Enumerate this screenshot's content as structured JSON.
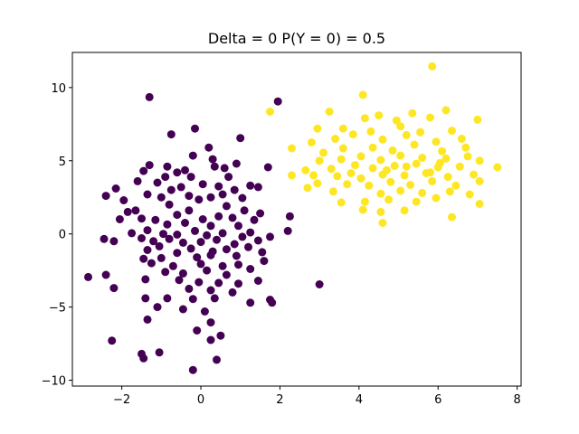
{
  "chart_data": {
    "type": "scatter",
    "title": "Delta = 0 P(Y = 0) = 0.5",
    "xlabel": "",
    "ylabel": "",
    "xlim": [
      -3.25,
      8.1
    ],
    "ylim": [
      -10.4,
      12.4
    ],
    "xticks": [
      -2,
      0,
      2,
      4,
      6,
      8
    ],
    "yticks": [
      -10,
      -5,
      0,
      5,
      10
    ],
    "tick_labels_x": [
      "−2",
      "0",
      "2",
      "4",
      "6",
      "8"
    ],
    "tick_labels_y": [
      "−10",
      "−5",
      "0",
      "5",
      "10"
    ],
    "grid": false,
    "series": [
      {
        "class": 0,
        "color": "#440154",
        "points": [
          [
            -1.3,
            9.35
          ],
          [
            1.95,
            9.05
          ],
          [
            -0.15,
            7.2
          ],
          [
            -0.75,
            6.8
          ],
          [
            1.0,
            6.55
          ],
          [
            0.2,
            5.9
          ],
          [
            -0.2,
            5.35
          ],
          [
            0.3,
            5.1
          ],
          [
            -1.3,
            4.7
          ],
          [
            -0.85,
            4.6
          ],
          [
            -0.6,
            4.2
          ],
          [
            -0.4,
            4.35
          ],
          [
            0.6,
            4.5
          ],
          [
            0.9,
            4.8
          ],
          [
            1.7,
            4.55
          ],
          [
            0.35,
            4.6
          ],
          [
            -1.45,
            4.3
          ],
          [
            -1.6,
            3.6
          ],
          [
            -0.25,
            3.9
          ],
          [
            -0.9,
            3.9
          ],
          [
            0.7,
            3.9
          ],
          [
            -1.1,
            3.5
          ],
          [
            -0.5,
            3.2
          ],
          [
            -2.15,
            3.1
          ],
          [
            1.25,
            3.3
          ],
          [
            1.45,
            3.2
          ],
          [
            0.05,
            3.4
          ],
          [
            0.45,
            3.25
          ],
          [
            -0.75,
            3.0
          ],
          [
            0.85,
            3.0
          ],
          [
            -1.95,
            2.3
          ],
          [
            -2.4,
            2.6
          ],
          [
            -1.35,
            2.7
          ],
          [
            -0.3,
            2.6
          ],
          [
            -0.05,
            2.35
          ],
          [
            0.25,
            2.5
          ],
          [
            0.55,
            2.7
          ],
          [
            1.05,
            2.45
          ],
          [
            -0.8,
            2.0
          ],
          [
            -1.0,
            2.5
          ],
          [
            0.65,
            1.9
          ],
          [
            1.1,
            1.6
          ],
          [
            1.5,
            1.4
          ],
          [
            -1.65,
            1.6
          ],
          [
            -1.85,
            1.5
          ],
          [
            -1.5,
            1.05
          ],
          [
            -0.6,
            1.3
          ],
          [
            -0.3,
            1.6
          ],
          [
            0.05,
            1.0
          ],
          [
            0.45,
            1.2
          ],
          [
            0.8,
            1.1
          ],
          [
            1.35,
            0.95
          ],
          [
            2.25,
            1.2
          ],
          [
            -2.05,
            1.0
          ],
          [
            -1.15,
            0.95
          ],
          [
            -0.85,
            0.65
          ],
          [
            -0.4,
            0.75
          ],
          [
            0.25,
            0.55
          ],
          [
            0.95,
            0.55
          ],
          [
            1.25,
            0.1
          ],
          [
            -1.75,
            0.05
          ],
          [
            -1.35,
            0.25
          ],
          [
            -0.95,
            0.0
          ],
          [
            -0.6,
            -0.05
          ],
          [
            -0.15,
            0.2
          ],
          [
            0.15,
            -0.1
          ],
          [
            0.55,
            0.05
          ],
          [
            1.05,
            -0.2
          ],
          [
            1.45,
            -0.45
          ],
          [
            1.75,
            -0.2
          ],
          [
            2.2,
            0.2
          ],
          [
            -2.45,
            -0.35
          ],
          [
            -2.2,
            -0.5
          ],
          [
            -1.5,
            -0.3
          ],
          [
            -1.2,
            -0.5
          ],
          [
            -0.8,
            -0.35
          ],
          [
            -0.45,
            -0.6
          ],
          [
            0.0,
            -0.55
          ],
          [
            0.4,
            -0.4
          ],
          [
            0.85,
            -0.7
          ],
          [
            1.2,
            -0.9
          ],
          [
            -1.35,
            -1.1
          ],
          [
            -1.05,
            -0.85
          ],
          [
            -0.25,
            -1.0
          ],
          [
            0.3,
            -1.2
          ],
          [
            0.65,
            -1.05
          ],
          [
            1.55,
            -1.25
          ],
          [
            -1.45,
            -1.7
          ],
          [
            -1.0,
            -1.65
          ],
          [
            -0.6,
            -1.3
          ],
          [
            -0.1,
            -1.6
          ],
          [
            0.25,
            -1.45
          ],
          [
            0.9,
            -1.5
          ],
          [
            1.6,
            -1.85
          ],
          [
            -1.25,
            -2.0
          ],
          [
            -0.7,
            -2.2
          ],
          [
            0.0,
            -2.05
          ],
          [
            0.55,
            -2.2
          ],
          [
            0.95,
            -2.1
          ],
          [
            1.25,
            -2.4
          ],
          [
            -2.4,
            -2.8
          ],
          [
            -0.9,
            -2.6
          ],
          [
            -0.45,
            -2.7
          ],
          [
            0.15,
            -2.5
          ],
          [
            0.65,
            -2.8
          ],
          [
            -1.4,
            -3.1
          ],
          [
            -0.55,
            -3.15
          ],
          [
            -0.05,
            -3.3
          ],
          [
            0.45,
            -3.35
          ],
          [
            0.95,
            -3.4
          ],
          [
            1.45,
            -3.2
          ],
          [
            -2.85,
            -2.95
          ],
          [
            3.0,
            -3.45
          ],
          [
            -2.2,
            -3.7
          ],
          [
            -0.3,
            -3.75
          ],
          [
            0.25,
            -3.85
          ],
          [
            0.8,
            -4.0
          ],
          [
            -1.4,
            -4.4
          ],
          [
            -0.85,
            -4.4
          ],
          [
            -0.2,
            -4.45
          ],
          [
            0.35,
            -4.4
          ],
          [
            1.75,
            -4.5
          ],
          [
            1.8,
            -4.7
          ],
          [
            1.25,
            -4.7
          ],
          [
            -1.1,
            -5.0
          ],
          [
            -0.45,
            -5.15
          ],
          [
            0.1,
            -5.3
          ],
          [
            -1.35,
            -5.85
          ],
          [
            -0.1,
            -6.6
          ],
          [
            0.25,
            -6.05
          ],
          [
            0.5,
            -6.95
          ],
          [
            0.25,
            -7.25
          ],
          [
            -2.25,
            -7.3
          ],
          [
            -1.5,
            -8.2
          ],
          [
            -1.45,
            -8.5
          ],
          [
            -1.05,
            -8.1
          ],
          [
            0.4,
            -8.6
          ],
          [
            -0.2,
            -9.3
          ]
        ]
      },
      {
        "class": 1,
        "color": "#fde725",
        "points": [
          [
            5.85,
            11.45
          ],
          [
            4.1,
            9.5
          ],
          [
            1.75,
            8.35
          ],
          [
            4.5,
            8.1
          ],
          [
            5.35,
            8.25
          ],
          [
            6.2,
            8.45
          ],
          [
            7.0,
            7.8
          ],
          [
            3.25,
            8.35
          ],
          [
            4.15,
            7.9
          ],
          [
            4.95,
            7.75
          ],
          [
            5.8,
            7.95
          ],
          [
            2.95,
            7.2
          ],
          [
            3.6,
            7.2
          ],
          [
            4.3,
            7.0
          ],
          [
            5.05,
            7.35
          ],
          [
            5.55,
            6.95
          ],
          [
            6.35,
            7.05
          ],
          [
            2.8,
            6.25
          ],
          [
            3.4,
            6.5
          ],
          [
            3.85,
            6.8
          ],
          [
            4.6,
            6.45
          ],
          [
            5.2,
            6.75
          ],
          [
            5.95,
            6.3
          ],
          [
            6.6,
            6.5
          ],
          [
            2.3,
            5.85
          ],
          [
            3.1,
            5.55
          ],
          [
            3.6,
            5.85
          ],
          [
            4.35,
            5.9
          ],
          [
            4.85,
            5.7
          ],
          [
            5.4,
            6.1
          ],
          [
            6.1,
            5.65
          ],
          [
            6.7,
            5.9
          ],
          [
            3.0,
            5.0
          ],
          [
            3.55,
            5.1
          ],
          [
            4.05,
            5.3
          ],
          [
            4.55,
            5.05
          ],
          [
            5.05,
            5.35
          ],
          [
            5.6,
            5.2
          ],
          [
            6.2,
            5.15
          ],
          [
            6.75,
            5.3
          ],
          [
            7.05,
            5.0
          ],
          [
            2.65,
            4.35
          ],
          [
            3.3,
            4.45
          ],
          [
            3.9,
            4.7
          ],
          [
            4.35,
            4.5
          ],
          [
            4.9,
            4.65
          ],
          [
            5.45,
            4.8
          ],
          [
            6.0,
            4.55
          ],
          [
            6.55,
            4.6
          ],
          [
            7.5,
            4.55
          ],
          [
            2.3,
            4.0
          ],
          [
            2.85,
            4.0
          ],
          [
            3.45,
            3.95
          ],
          [
            4.05,
            3.8
          ],
          [
            4.6,
            4.05
          ],
          [
            5.15,
            4.0
          ],
          [
            5.7,
            4.15
          ],
          [
            6.25,
            3.9
          ],
          [
            6.9,
            4.05
          ],
          [
            2.95,
            3.45
          ],
          [
            3.7,
            3.4
          ],
          [
            4.25,
            3.3
          ],
          [
            4.8,
            3.55
          ],
          [
            5.3,
            3.35
          ],
          [
            5.85,
            3.6
          ],
          [
            6.45,
            3.3
          ],
          [
            7.05,
            3.6
          ],
          [
            2.7,
            3.15
          ],
          [
            3.35,
            2.9
          ],
          [
            4.55,
            2.75
          ],
          [
            5.05,
            2.95
          ],
          [
            5.6,
            2.8
          ],
          [
            6.3,
            2.9
          ],
          [
            6.8,
            2.7
          ],
          [
            3.55,
            2.15
          ],
          [
            4.15,
            2.2
          ],
          [
            4.75,
            2.35
          ],
          [
            5.45,
            2.2
          ],
          [
            5.95,
            2.45
          ],
          [
            7.05,
            2.05
          ],
          [
            4.1,
            1.65
          ],
          [
            4.55,
            1.5
          ],
          [
            5.15,
            1.6
          ],
          [
            6.35,
            1.15
          ],
          [
            4.6,
            0.75
          ],
          [
            5.8,
            4.2
          ],
          [
            4.7,
            4.35
          ],
          [
            5.2,
            4.6
          ],
          [
            6.05,
            4.85
          ],
          [
            3.8,
            4.15
          ]
        ]
      }
    ]
  }
}
